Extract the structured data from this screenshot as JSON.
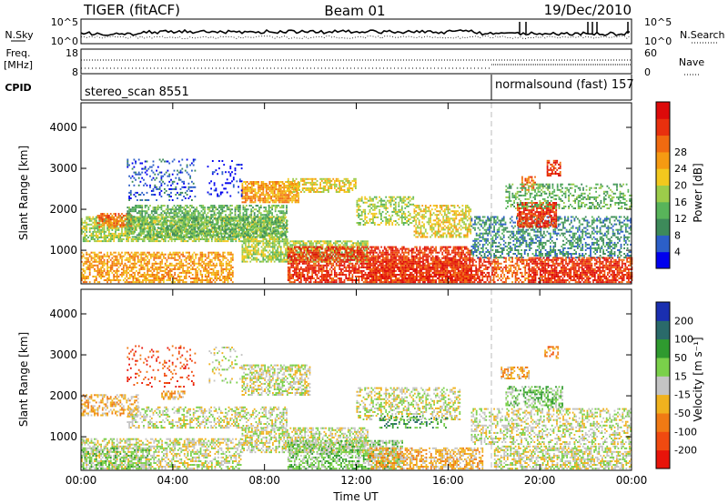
{
  "header": {
    "station": "TIGER (fitACF)",
    "beam": "Beam 01",
    "date": "19/Dec/2010"
  },
  "noise_panel": {
    "left_label": "N.Sky",
    "right_label": "N.Search",
    "left_ticks": [
      "10^5",
      "10^0"
    ],
    "right_ticks": [
      "10^5",
      "10^0"
    ]
  },
  "freq_panel": {
    "left_label_1": "Freq.",
    "left_label_2": "[MHz]",
    "right_label": "Nave",
    "left_ticks": [
      "18",
      "8"
    ],
    "right_ticks": [
      "60",
      "0"
    ]
  },
  "cpid_panel": {
    "label": "CPID",
    "segments": [
      {
        "text": "stereo_scan 8551",
        "start_hour": 0,
        "end_hour": 18
      },
      {
        "text": "normalsound (fast) 157",
        "start_hour": 18,
        "end_hour": 24
      }
    ]
  },
  "x_axis": {
    "label": "Time UT",
    "ticks": [
      "00:00",
      "04:00",
      "08:00",
      "12:00",
      "16:00",
      "20:00",
      "00:00"
    ]
  },
  "chart_data": [
    {
      "type": "heatmap",
      "panel": "power",
      "ylabel": "Slant Range [km]",
      "yticks": [
        "1000",
        "2000",
        "3000",
        "4000"
      ],
      "ylim": [
        180,
        4600
      ],
      "xlim_hours": [
        0,
        24
      ],
      "colorbar": {
        "label": "Power [dB]",
        "ticks": [
          "4",
          "8",
          "12",
          "16",
          "20",
          "24",
          "28"
        ],
        "colors": [
          "#0000ee",
          "#2c5fc8",
          "#3d8a5a",
          "#58b45a",
          "#9ccc4a",
          "#f2c81e",
          "#f59a12",
          "#f06a10",
          "#e8300e",
          "#dd0a0a"
        ]
      },
      "regions": [
        {
          "t0": 0.0,
          "t1": 6.6,
          "r0": 200,
          "r1": 950,
          "level": 6,
          "density": 0.6
        },
        {
          "t0": 0.0,
          "t1": 9.0,
          "r0": 1200,
          "r1": 1800,
          "level": 4,
          "density": 0.7
        },
        {
          "t0": 0.7,
          "t1": 2.2,
          "r0": 1550,
          "r1": 1900,
          "level": 7,
          "density": 0.7
        },
        {
          "t0": 2.0,
          "t1": 9.0,
          "r0": 1300,
          "r1": 2100,
          "level": 3,
          "density": 0.6
        },
        {
          "t0": 7.0,
          "t1": 12.5,
          "r0": 700,
          "r1": 1200,
          "level": 4,
          "density": 0.7
        },
        {
          "t0": 7.0,
          "t1": 9.5,
          "r0": 2150,
          "r1": 2650,
          "level": 6,
          "density": 0.8
        },
        {
          "t0": 9.0,
          "t1": 12.0,
          "r0": 2400,
          "r1": 2750,
          "level": 5,
          "density": 0.6
        },
        {
          "t0": 9.0,
          "t1": 17.0,
          "r0": 200,
          "r1": 1100,
          "level": 8,
          "density": 0.7
        },
        {
          "t0": 12.5,
          "t1": 18.0,
          "r0": 200,
          "r1": 800,
          "level": 8,
          "density": 0.65
        },
        {
          "t0": 12.0,
          "t1": 14.5,
          "r0": 1600,
          "r1": 2300,
          "level": 4,
          "density": 0.5
        },
        {
          "t0": 14.5,
          "t1": 17.0,
          "r0": 1300,
          "r1": 2100,
          "level": 5,
          "density": 0.55
        },
        {
          "t0": 17.0,
          "t1": 24.0,
          "r0": 800,
          "r1": 1800,
          "level": 2,
          "density": 0.45
        },
        {
          "t0": 18.0,
          "t1": 19.5,
          "r0": 200,
          "r1": 800,
          "level": 7,
          "density": 0.5
        },
        {
          "t0": 19.5,
          "t1": 24.0,
          "r0": 200,
          "r1": 800,
          "level": 8,
          "density": 0.75
        },
        {
          "t0": 19.0,
          "t1": 20.7,
          "r0": 1550,
          "r1": 2150,
          "level": 8,
          "density": 0.75
        },
        {
          "t0": 19.2,
          "t1": 19.8,
          "r0": 2450,
          "r1": 2800,
          "level": 7,
          "density": 0.6
        },
        {
          "t0": 20.3,
          "t1": 20.9,
          "r0": 2800,
          "r1": 3200,
          "level": 8,
          "density": 0.6
        },
        {
          "t0": 18.5,
          "t1": 24.0,
          "r0": 2000,
          "r1": 2600,
          "level": 3,
          "density": 0.4
        },
        {
          "t0": 2.0,
          "t1": 5.0,
          "r0": 2200,
          "r1": 3200,
          "level": 1,
          "density": 0.2
        },
        {
          "t0": 5.5,
          "t1": 7.0,
          "r0": 2300,
          "r1": 3200,
          "level": 0,
          "density": 0.15
        }
      ]
    },
    {
      "type": "heatmap",
      "panel": "velocity",
      "ylabel": "Slant Range [km]",
      "yticks": [
        "1000",
        "2000",
        "3000",
        "4000"
      ],
      "ylim": [
        180,
        4600
      ],
      "xlim_hours": [
        0,
        24
      ],
      "colorbar": {
        "label": "Velocity [m s⁻¹]",
        "ticks": [
          "200",
          "100",
          "50",
          "15",
          "-15",
          "-50",
          "-100",
          "-200"
        ],
        "colors": [
          "#1a2fb0",
          "#2a6a6a",
          "#2f9a2f",
          "#7ad04a",
          "#c4c4c4",
          "#f0b21e",
          "#f07a14",
          "#f04a10",
          "#e8140a"
        ]
      },
      "regions": [
        {
          "t0": 0.0,
          "t1": 7.0,
          "r0": 200,
          "r1": 950,
          "level": 4,
          "density": 0.55
        },
        {
          "t0": 0.0,
          "t1": 3.0,
          "r0": 200,
          "r1": 700,
          "level": 3,
          "density": 0.45
        },
        {
          "t0": 0.0,
          "t1": 2.5,
          "r0": 1500,
          "r1": 2000,
          "level": 5,
          "density": 0.5
        },
        {
          "t0": 2.0,
          "t1": 9.0,
          "r0": 1200,
          "r1": 1700,
          "level": 4,
          "density": 0.45
        },
        {
          "t0": 3.5,
          "t1": 4.5,
          "r0": 1900,
          "r1": 2100,
          "level": 5,
          "density": 0.6
        },
        {
          "t0": 7.0,
          "t1": 12.5,
          "r0": 600,
          "r1": 1200,
          "level": 4,
          "density": 0.6
        },
        {
          "t0": 7.0,
          "t1": 10.0,
          "r0": 2000,
          "r1": 2750,
          "level": 4,
          "density": 0.6
        },
        {
          "t0": 9.0,
          "t1": 14.0,
          "r0": 200,
          "r1": 900,
          "level": 3,
          "density": 0.6
        },
        {
          "t0": 12.5,
          "t1": 17.5,
          "r0": 200,
          "r1": 700,
          "level": 5,
          "density": 0.6
        },
        {
          "t0": 12.0,
          "t1": 16.5,
          "r0": 1400,
          "r1": 2200,
          "level": 4,
          "density": 0.45
        },
        {
          "t0": 13.0,
          "t1": 16.0,
          "r0": 1200,
          "r1": 1500,
          "level": 2,
          "density": 0.3
        },
        {
          "t0": 17.0,
          "t1": 24.0,
          "r0": 800,
          "r1": 1700,
          "level": 4,
          "density": 0.45
        },
        {
          "t0": 18.0,
          "t1": 24.0,
          "r0": 200,
          "r1": 750,
          "level": 4,
          "density": 0.6
        },
        {
          "t0": 18.5,
          "t1": 21.0,
          "r0": 1700,
          "r1": 2200,
          "level": 3,
          "density": 0.55
        },
        {
          "t0": 18.3,
          "t1": 19.5,
          "r0": 2400,
          "r1": 2700,
          "level": 5,
          "density": 0.6
        },
        {
          "t0": 20.2,
          "t1": 20.8,
          "r0": 2900,
          "r1": 3200,
          "level": 6,
          "density": 0.5
        },
        {
          "t0": 2.0,
          "t1": 5.0,
          "r0": 2200,
          "r1": 3200,
          "level": 7,
          "density": 0.15
        },
        {
          "t0": 5.5,
          "t1": 7.0,
          "r0": 2300,
          "r1": 3200,
          "level": 4,
          "density": 0.15
        }
      ]
    }
  ]
}
